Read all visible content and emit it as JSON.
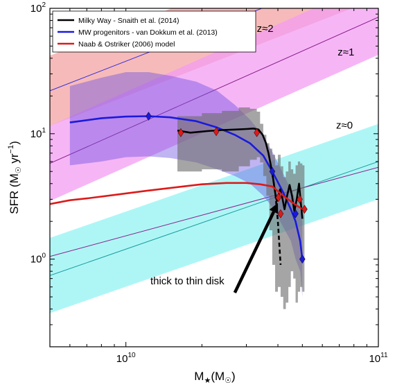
{
  "chart_data": {
    "type": "line",
    "xlabel": "M",
    "xlabel_sub": "★",
    "xlabel_unit": "(M",
    "xlabel_unit_sub": "☉",
    "xlabel_close": ")",
    "ylabel": "SFR (M",
    "ylabel_sub": "☉",
    "ylabel_mid": " yr",
    "ylabel_sup": "−1",
    "ylabel_close": ")",
    "xscale": "log",
    "yscale": "log",
    "xlim": [
      5000000000,
      100000000000
    ],
    "ylim": [
      0.2,
      100
    ],
    "x_ticks": [
      {
        "value": 10000000000,
        "base": "10",
        "exp": "10"
      },
      {
        "value": 100000000000,
        "base": "10",
        "exp": "11"
      }
    ],
    "y_ticks": [
      {
        "value": 1,
        "base": "10",
        "exp": "0"
      },
      {
        "value": 10,
        "base": "10",
        "exp": "1"
      },
      {
        "value": 100,
        "base": "10",
        "exp": "2"
      }
    ],
    "legend": {
      "position": "top-left",
      "entries": [
        {
          "label": "Milky Way - Snaith et al. (2014)",
          "color": "#000000"
        },
        {
          "label": "MW progenitors - van Dokkum et al. (2013)",
          "color": "#1a1adc"
        },
        {
          "label": "Naab & Ostriker (2006) model",
          "color": "#dc1a1a"
        }
      ]
    },
    "bands": [
      {
        "name": "z≈2",
        "label": "z≈2",
        "label_at": [
          33000000000,
          65
        ],
        "fill": "#f4a0a0",
        "line": "#2c2cd8",
        "center": [
          [
            5000000000,
            22
          ],
          [
            100000000000,
            230
          ]
        ],
        "halfwidth_dex": 0.28
      },
      {
        "name": "z≈1",
        "label": "z≈1",
        "label_at": [
          69000000000,
          42
        ],
        "fill": "#f29af2",
        "line": "#8a1e8a",
        "center": [
          [
            5000000000,
            5.8
          ],
          [
            100000000000,
            85
          ]
        ],
        "halfwidth_dex": 0.3
      },
      {
        "name": "z≈0",
        "label": "z≈0",
        "label_at": [
          68000000000,
          11
        ],
        "fill": "#8ff2f2",
        "line": "#1c9c9c",
        "center": [
          [
            5000000000,
            0.74
          ],
          [
            100000000000,
            6.0
          ]
        ],
        "halfwidth_dex": 0.3
      },
      {
        "name": "z≈0 (alt)",
        "label": "",
        "fill": "none",
        "line": "#8a1e8a",
        "center": [
          [
            5000000000,
            1.05
          ],
          [
            100000000000,
            5.4
          ]
        ],
        "halfwidth_dex": 0
      }
    ],
    "series": [
      {
        "name": "MW progenitors - van Dokkum et al. (2013)",
        "color": "#1a1adc",
        "x": [
          6000000000,
          8000000000,
          10000000000,
          12300000000,
          15000000000,
          19000000000,
          23000000000,
          27000000000,
          31000000000,
          35000000000,
          38000000000,
          42000000000,
          45000000000,
          47000000000,
          49000000000,
          50000000000
        ],
        "y": [
          12.3,
          13.3,
          13.7,
          13.8,
          13.5,
          12.6,
          11.2,
          9.8,
          8.4,
          6.7,
          5.0,
          3.4,
          2.5,
          2.0,
          1.4,
          1.0
        ],
        "markers": {
          "x": [
            12300000000,
            38000000000,
            47000000000,
            50000000000
          ],
          "y": [
            13.8,
            5.0,
            2.3,
            1.0
          ],
          "shape": "diamond"
        },
        "band_upper": [
          24,
          28,
          31,
          31,
          29,
          26,
          22,
          17,
          13,
          9.6,
          7.2,
          4.8,
          3.6,
          3.0,
          2.4,
          2.0
        ],
        "band_lower": [
          5.6,
          6.0,
          6.5,
          6.6,
          6.4,
          5.9,
          5.2,
          4.6,
          4.0,
          3.2,
          2.6,
          1.8,
          1.4,
          1.0,
          0.8,
          0.5
        ]
      },
      {
        "name": "Milky Way - Snaith et al. (2014)",
        "color": "#000000",
        "x": [
          16000000000,
          18000000000,
          21000000000,
          24000000000,
          27000000000,
          30000000000,
          32000000000,
          33500000000,
          34800000000,
          35800000000,
          36700000000,
          37500000000,
          38300000000,
          39000000000,
          39600000000,
          40200000000,
          40800000000,
          41500000000,
          42500000000,
          43500000000,
          44500000000,
          45500000000,
          46500000000,
          47500000000,
          48500000000,
          49300000000,
          50000000000
        ],
        "y": [
          10.6,
          10.2,
          10.5,
          10.7,
          10.8,
          10.9,
          11.0,
          10.8,
          9.8,
          8.5,
          7.0,
          5.6,
          4.4,
          3.4,
          2.9,
          3.2,
          3.6,
          3.2,
          2.5,
          3.2,
          3.9,
          3.2,
          2.4,
          3.0,
          4.0,
          2.8,
          2.1
        ],
        "dashed_segment": {
          "x": [
            38000000000,
            39000000000,
            40000000000,
            41000000000
          ],
          "y": [
            4.8,
            3.5,
            2.0,
            0.9
          ]
        },
        "markers": {
          "x": [
            16500000000,
            22800000000,
            33000000000,
            40200000000,
            41000000000,
            48800000000,
            51000000000
          ],
          "y": [
            10.2,
            10.4,
            10.2,
            3.1,
            2.3,
            3.0,
            2.5
          ],
          "shape": "diamond"
        },
        "error_region": {
          "x": [
            16000000000,
            20000000000,
            24000000000,
            28000000000,
            31000000000,
            33000000000,
            34000000000,
            35000000000,
            36000000000,
            37000000000,
            38000000000,
            39000000000,
            40000000000,
            41000000000,
            42000000000,
            43000000000,
            44000000000,
            45000000000,
            46000000000,
            47000000000,
            48000000000,
            49000000000,
            50000000000
          ],
          "upper": [
            13.8,
            14.6,
            15.2,
            16.2,
            15.8,
            15.0,
            12.0,
            9.8,
            8.4,
            7.6,
            6.8,
            5.6,
            6.8,
            5.5,
            4.5,
            5.0,
            6.0,
            5.2,
            4.8,
            5.6,
            6.0,
            5.8,
            5.6
          ],
          "lower": [
            5.0,
            5.2,
            5.0,
            5.5,
            6.2,
            6.5,
            5.9,
            4.6,
            3.2,
            1.7,
            0.9,
            0.55,
            0.6,
            0.5,
            0.4,
            0.45,
            0.6,
            0.8,
            0.7,
            0.45,
            0.55,
            0.6,
            0.55
          ]
        }
      },
      {
        "name": "Naab & Ostriker (2006) model",
        "color": "#dc1a1a",
        "x": [
          5000000000,
          6000000000,
          7000000000,
          9000000000,
          12000000000,
          16000000000,
          20000000000,
          25000000000,
          30000000000,
          34000000000,
          38000000000,
          42000000000,
          46000000000,
          50000000000
        ],
        "y": [
          2.75,
          2.95,
          3.05,
          3.25,
          3.5,
          3.75,
          3.95,
          4.05,
          4.05,
          3.95,
          3.8,
          3.2,
          2.8,
          2.5
        ]
      }
    ],
    "annotation": {
      "text": "thick to thin disk",
      "text_at": [
        12500000000,
        0.63
      ],
      "arrow_from": [
        27000000000,
        0.54
      ],
      "arrow_to": [
        40000000000,
        2.8
      ]
    }
  }
}
